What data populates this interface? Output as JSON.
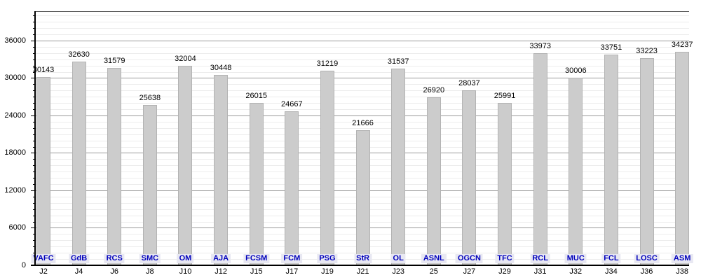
{
  "chart_data": {
    "type": "bar",
    "title": "",
    "legend": "none",
    "grid": "major+minor",
    "bars": [
      {
        "x_label": "J2",
        "team": "VAFC",
        "value": 30143
      },
      {
        "x_label": "J4",
        "team": "GdB",
        "value": 32630
      },
      {
        "x_label": "J6",
        "team": "RCS",
        "value": 31579
      },
      {
        "x_label": "J8",
        "team": "SMC",
        "value": 25638
      },
      {
        "x_label": "J10",
        "team": "OM",
        "value": 32004
      },
      {
        "x_label": "J12",
        "team": "AJA",
        "value": 30448
      },
      {
        "x_label": "J15",
        "team": "FCSM",
        "value": 26015
      },
      {
        "x_label": "J17",
        "team": "FCM",
        "value": 24667
      },
      {
        "x_label": "J19",
        "team": "PSG",
        "value": 31219
      },
      {
        "x_label": "J21",
        "team": "StR",
        "value": 21666
      },
      {
        "x_label": "J23",
        "team": "OL",
        "value": 31537
      },
      {
        "x_label": "25",
        "team": "ASNL",
        "value": 26920
      },
      {
        "x_label": "J27",
        "team": "OGCN",
        "value": 28037
      },
      {
        "x_label": "J29",
        "team": "TFC",
        "value": 25991
      },
      {
        "x_label": "J31",
        "team": "RCL",
        "value": 33973
      },
      {
        "x_label": "J32",
        "team": "MUC",
        "value": 30006
      },
      {
        "x_label": "J34",
        "team": "FCL",
        "value": 33751
      },
      {
        "x_label": "J36",
        "team": "LOSC",
        "value": 33223
      },
      {
        "x_label": "J38",
        "team": "ASM",
        "value": 34237
      }
    ],
    "y_axis": {
      "tick_values": [
        0,
        6000,
        12000,
        18000,
        24000,
        30000,
        36000
      ],
      "minor_step": 1000,
      "ylim": [
        0,
        40700
      ]
    },
    "colors": {
      "bar_fill": "#cccccc",
      "bar_border": "#b3b3b3",
      "major_grid": "#999999",
      "minor_grid": "#ececec",
      "frame_top": "#555555",
      "axis": "#000000",
      "value_text": "#000000",
      "x_tick_text": "#000000",
      "team_text": "#0000bb",
      "team_bg": "#e8e8f2"
    }
  }
}
